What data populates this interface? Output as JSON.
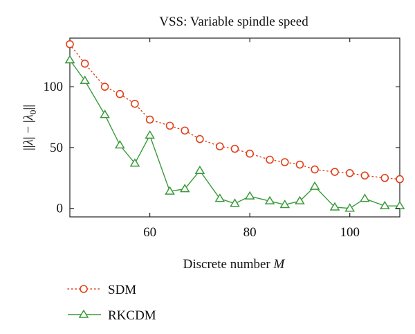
{
  "chart_data": {
    "type": "line",
    "title": "VSS: Variable spindle speed",
    "xlabel": "Discrete number ",
    "xlabel_var": "M",
    "ylabel_parts": [
      "||",
      "λ",
      "| − |",
      "λ",
      "0",
      "||"
    ],
    "xlim": [
      44,
      110
    ],
    "ylim": [
      -7,
      140
    ],
    "xticks": [
      60,
      80,
      100
    ],
    "yticks": [
      0,
      50,
      100
    ],
    "grid": false,
    "legend_position": "bottom-left",
    "series": [
      {
        "name": "SDM",
        "color": "#e0401a",
        "marker": "circle",
        "line": "dotted",
        "x": [
          44,
          47,
          51,
          54,
          57,
          60,
          64,
          67,
          70,
          74,
          77,
          80,
          84,
          87,
          90,
          93,
          97,
          100,
          103,
          107,
          110
        ],
        "y": [
          135,
          119,
          100,
          94,
          86,
          73,
          68,
          64,
          57,
          51,
          49,
          45,
          40,
          38,
          36,
          32,
          30,
          29,
          27,
          25,
          24
        ]
      },
      {
        "name": "RKCDM",
        "color": "#3a9a3a",
        "marker": "triangle",
        "line": "solid",
        "x": [
          44,
          47,
          51,
          54,
          57,
          60,
          64,
          67,
          70,
          74,
          77,
          80,
          84,
          87,
          90,
          93,
          97,
          100,
          103,
          107,
          110
        ],
        "y": [
          122,
          105,
          77,
          52,
          37,
          60,
          14,
          16,
          31,
          8,
          4,
          10,
          6,
          3,
          6,
          18,
          1,
          0,
          8,
          2,
          2
        ]
      }
    ]
  }
}
